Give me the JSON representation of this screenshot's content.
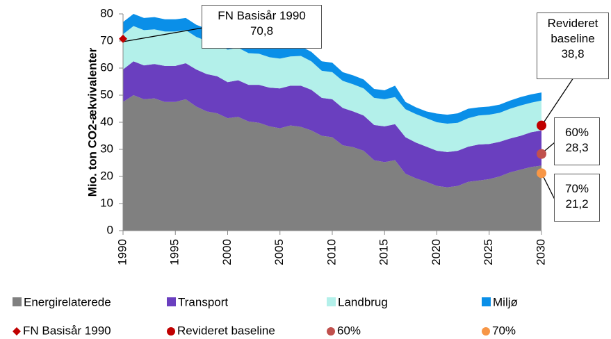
{
  "chart_data": {
    "type": "area",
    "stacked": true,
    "y_label": "Mio. ton CO2-ækvivalenter",
    "x": [
      1990,
      1991,
      1992,
      1993,
      1994,
      1995,
      1996,
      1997,
      1998,
      1999,
      2000,
      2001,
      2002,
      2003,
      2004,
      2005,
      2006,
      2007,
      2008,
      2009,
      2010,
      2011,
      2012,
      2013,
      2014,
      2015,
      2016,
      2017,
      2018,
      2019,
      2020,
      2021,
      2022,
      2023,
      2024,
      2025,
      2026,
      2027,
      2028,
      2029,
      2030
    ],
    "xlim": [
      1990,
      2030
    ],
    "xticks": [
      1990,
      1995,
      2000,
      2005,
      2010,
      2015,
      2020,
      2025,
      2030
    ],
    "ylim": [
      0,
      80
    ],
    "yticks": [
      0,
      10,
      20,
      30,
      40,
      50,
      60,
      70,
      80
    ],
    "series": [
      {
        "name": "Energirelaterede",
        "color": "#808080",
        "values": [
          47.5,
          50,
          48.5,
          48.8,
          47.5,
          47.5,
          48.5,
          45.8,
          44,
          43.3,
          41.5,
          42,
          40.3,
          39.8,
          38.5,
          37.8,
          38.8,
          38.3,
          37,
          35,
          34.5,
          31.5,
          30.8,
          29.5,
          26,
          25.3,
          26,
          21,
          19.3,
          18,
          16.5,
          16,
          16.5,
          18,
          18.5,
          19,
          20,
          21.5,
          22.5,
          23.5,
          24
        ]
      },
      {
        "name": "Transport",
        "color": "#6a3fbf",
        "values": [
          12,
          12.5,
          12.5,
          12.7,
          13.3,
          13.3,
          13.3,
          13.7,
          13.8,
          13.7,
          13.3,
          13.5,
          13.5,
          14,
          14.3,
          14.7,
          14.7,
          15.2,
          15,
          14,
          14,
          13.8,
          13.2,
          13,
          13,
          13.2,
          13.3,
          13.5,
          13.2,
          13,
          13,
          13,
          13,
          13,
          13.3,
          13,
          12.8,
          12.5,
          12.5,
          12.8,
          13
        ]
      },
      {
        "name": "Landbrug",
        "color": "#b3f0ea",
        "values": [
          13,
          13,
          13,
          12.8,
          12.7,
          12.7,
          12.2,
          12,
          12.2,
          12,
          12,
          12,
          11.7,
          11.5,
          11.2,
          11,
          10.8,
          11,
          10.5,
          10,
          10,
          10,
          10,
          10,
          10,
          10,
          10,
          10.3,
          10.5,
          10.5,
          10.5,
          10.5,
          10.3,
          10.5,
          10.7,
          10.8,
          10.7,
          11,
          11.2,
          10.9,
          11
        ]
      },
      {
        "name": "Miljø",
        "color": "#0a8fe8",
        "values": [
          4.5,
          4.5,
          4.5,
          4.5,
          4.5,
          4.5,
          4.5,
          4.5,
          4.5,
          4.5,
          4.5,
          4.5,
          4.5,
          4.2,
          4,
          4,
          3.7,
          3.5,
          3.5,
          3.5,
          3.5,
          3.2,
          3.3,
          3.3,
          3.3,
          3.3,
          4.2,
          2.7,
          2.5,
          2.5,
          3.2,
          3.3,
          3.5,
          3.5,
          3,
          3,
          3,
          3,
          3.1,
          3.1,
          3
        ]
      }
    ],
    "points": [
      {
        "name": "FN Basisår 1990",
        "color": "#c00000",
        "marker": "diamond",
        "x": 1990,
        "value": 70.8,
        "value_label": "70,8"
      },
      {
        "name": "Revideret baseline",
        "color": "#c00000",
        "marker": "circle",
        "x": 2030,
        "value": 38.8,
        "value_label": "38,8"
      },
      {
        "name": "60%",
        "color": "#c0504d",
        "marker": "circle",
        "x": 2030,
        "value": 28.3,
        "value_label": "28,3"
      },
      {
        "name": "70%",
        "color": "#f79646",
        "marker": "circle",
        "x": 2030,
        "value": 21.2,
        "value_label": "21,2"
      }
    ]
  }
}
